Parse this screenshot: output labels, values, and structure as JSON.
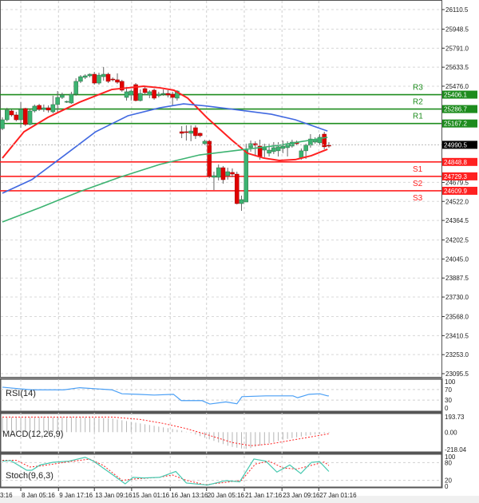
{
  "chart_data": {
    "type": "candlestick",
    "price_axis": {
      "ticks": [
        "26110.5",
        "25948.5",
        "25791.0",
        "25633.5",
        "25476.0",
        "24679.5",
        "24522.0",
        "24364.5",
        "24202.5",
        "24045.0",
        "23887.5",
        "23730.0",
        "23568.0",
        "23410.5",
        "23253.0",
        "23095.5"
      ],
      "range": [
        23095.5,
        26110.5
      ],
      "grid": true
    },
    "current_price": {
      "value": 24990.5,
      "label": "24990.5",
      "color": "#000000"
    },
    "levels": [
      {
        "name": "R3",
        "value": 25406.1,
        "label": "25406.1",
        "color": "#1e8c1e"
      },
      {
        "name": "R2",
        "value": 25286.7,
        "label": "25286.7",
        "color": "#1e8c1e"
      },
      {
        "name": "R1",
        "value": 25167.2,
        "label": "25167.2",
        "color": "#1e8c1e"
      },
      {
        "name": "S1",
        "value": 24848.8,
        "label": "24848.8",
        "color": "#ff2020"
      },
      {
        "name": "S2",
        "value": 24729.3,
        "label": "24729.3",
        "color": "#ff2020"
      },
      {
        "name": "S3",
        "value": 24609.9,
        "label": "24609.9",
        "color": "#ff2020"
      }
    ],
    "colors": {
      "up": "#3cb371",
      "down": "#e00000",
      "ma_fast": "#ff2020",
      "ma_mid": "#4169e1",
      "ma_slow": "#3cb371"
    },
    "candles_ohlc": [
      [
        25125,
        25218,
        25112,
        25198
      ],
      [
        25198,
        25297,
        25185,
        25278
      ],
      [
        25271,
        25284,
        25225,
        25238
      ],
      [
        25238,
        25264,
        25185,
        25198
      ],
      [
        25198,
        25344,
        25132,
        25284
      ],
      [
        25291,
        25297,
        25145,
        25159
      ],
      [
        25159,
        25284,
        25152,
        25271
      ],
      [
        25271,
        25324,
        25258,
        25311
      ],
      [
        25317,
        25330,
        25271,
        25284
      ],
      [
        25284,
        25324,
        25264,
        25297
      ],
      [
        25297,
        25317,
        25258,
        25278
      ],
      [
        25264,
        25397,
        25251,
        25324
      ],
      [
        25324,
        25436,
        25258,
        25383
      ],
      [
        25383,
        25423,
        25370,
        25403
      ],
      [
        25344,
        25357,
        25337,
        25350
      ],
      [
        25337,
        25430,
        25330,
        25410
      ],
      [
        25410,
        25542,
        25397,
        25516
      ],
      [
        25516,
        25568,
        25502,
        25555
      ],
      [
        25549,
        25575,
        25535,
        25562
      ],
      [
        25562,
        25582,
        25549,
        25575
      ],
      [
        25575,
        25595,
        25489,
        25502
      ],
      [
        25502,
        25588,
        25489,
        25568
      ],
      [
        25555,
        25635,
        25522,
        25575
      ],
      [
        25575,
        25588,
        25502,
        25516
      ],
      [
        25535,
        25549,
        25516,
        25529
      ],
      [
        25529,
        25582,
        25496,
        25509
      ],
      [
        25516,
        25529,
        25430,
        25443
      ],
      [
        25383,
        25469,
        25357,
        25430
      ],
      [
        25403,
        25449,
        25357,
        25436
      ],
      [
        25489,
        25502,
        25350,
        25357
      ],
      [
        25357,
        25449,
        25350,
        25416
      ],
      [
        25456,
        25469,
        25403,
        25423
      ],
      [
        25403,
        25443,
        25377,
        25430
      ],
      [
        25443,
        25456,
        25364,
        25377
      ],
      [
        25397,
        25430,
        25383,
        25410
      ],
      [
        25410,
        25449,
        25397,
        25416
      ],
      [
        25416,
        25443,
        25383,
        25403
      ],
      [
        25410,
        25430,
        25317,
        25383
      ],
      [
        25377,
        25443,
        25357,
        25436
      ],
      [
        25099,
        25145,
        25046,
        25086
      ],
      [
        25099,
        25152,
        25026,
        25092
      ],
      [
        25086,
        25152,
        25020,
        25105
      ],
      [
        25132,
        25152,
        25039,
        25066
      ],
      [
        25086,
        25092,
        25053,
        25066
      ],
      [
        25000,
        25033,
        24987,
        25020
      ],
      [
        25020,
        25033,
        24715,
        24729
      ],
      [
        24722,
        24768,
        24616,
        24735
      ],
      [
        24722,
        24828,
        24695,
        24801
      ],
      [
        24801,
        24815,
        24669,
        24702
      ],
      [
        24735,
        24801,
        24702,
        24768
      ],
      [
        24762,
        24795,
        24722,
        24748
      ],
      [
        24748,
        24768,
        24497,
        24504
      ],
      [
        24504,
        24570,
        24444,
        24537
      ],
      [
        24517,
        25000,
        24517,
        24947
      ],
      [
        24967,
        25026,
        24934,
        25000
      ],
      [
        25000,
        25020,
        24901,
        24987
      ],
      [
        24980,
        25033,
        24868,
        24894
      ],
      [
        24947,
        25000,
        24888,
        24967
      ],
      [
        24921,
        25000,
        24894,
        24947
      ],
      [
        24934,
        25013,
        24914,
        24967
      ],
      [
        24941,
        25013,
        24894,
        24974
      ],
      [
        24960,
        25026,
        24921,
        24980
      ],
      [
        24967,
        25020,
        24894,
        25000
      ],
      [
        24980,
        25033,
        24967,
        25013
      ],
      [
        25013,
        25026,
        24987,
        25000
      ],
      [
        24881,
        24960,
        24868,
        24941
      ],
      [
        24941,
        25000,
        24874,
        24987
      ],
      [
        24987,
        25079,
        24967,
        25039
      ],
      [
        25013,
        25053,
        25000,
        25033
      ],
      [
        25007,
        25079,
        24987,
        25053
      ],
      [
        25079,
        25099,
        24954,
        24974
      ],
      [
        24987,
        25013,
        24967,
        24980
      ]
    ],
    "moving_averages": [
      {
        "key": "ma_fast",
        "points": [
          [
            0,
            24881
          ],
          [
            4.7,
            25099
          ],
          [
            9.9,
            25218
          ],
          [
            16.8,
            25344
          ],
          [
            23.8,
            25449
          ],
          [
            30.7,
            25476
          ],
          [
            34.2,
            25463
          ],
          [
            37.3,
            25443
          ],
          [
            40.3,
            25377
          ],
          [
            44.6,
            25211
          ],
          [
            49.8,
            25033
          ],
          [
            53.3,
            24921
          ],
          [
            56.8,
            24881
          ],
          [
            60.2,
            24861
          ],
          [
            63.7,
            24868
          ],
          [
            67.2,
            24901
          ],
          [
            70.7,
            24954
          ]
        ]
      },
      {
        "key": "ma_mid",
        "points": [
          [
            0,
            24590
          ],
          [
            6.4,
            24702
          ],
          [
            13.4,
            24901
          ],
          [
            20.3,
            25099
          ],
          [
            27.3,
            25231
          ],
          [
            34.2,
            25297
          ],
          [
            39.4,
            25330
          ],
          [
            44.6,
            25311
          ],
          [
            51.6,
            25278
          ],
          [
            58.5,
            25244
          ],
          [
            63.7,
            25198
          ],
          [
            70.7,
            25105
          ]
        ]
      },
      {
        "key": "ma_slow",
        "points": [
          [
            0,
            24352
          ],
          [
            8.2,
            24471
          ],
          [
            16.8,
            24603
          ],
          [
            25.5,
            24722
          ],
          [
            34.2,
            24828
          ],
          [
            42.9,
            24907
          ],
          [
            51.6,
            24947
          ],
          [
            60.2,
            24987
          ],
          [
            70.7,
            25053
          ]
        ]
      }
    ],
    "time_axis": [
      {
        "bar": -0.3,
        "label": "3:16"
      },
      {
        "bar": 4,
        "label": "8 Jan 05:16"
      },
      {
        "bar": 12.2,
        "label": "9 Jan 17:16"
      },
      {
        "bar": 20,
        "label": "13 Jan 09:16"
      },
      {
        "bar": 28.1,
        "label": "15 Jan 01:16"
      },
      {
        "bar": 36.5,
        "label": "16 Jan 13:16"
      },
      {
        "bar": 44.4,
        "label": "20 Jan 05:16"
      },
      {
        "bar": 52.6,
        "label": "21 Jan 17:16"
      },
      {
        "bar": 60.8,
        "label": "23 Jan 09:16"
      },
      {
        "bar": 68.8,
        "label": "27 Jan 01:16"
      }
    ],
    "indicators": {
      "rsi": {
        "title": "RSI(14)",
        "ticks": [
          "100",
          "70",
          "30",
          "0"
        ],
        "range": [
          0,
          100
        ],
        "color": "#4a9ff5",
        "points": [
          [
            0,
            79
          ],
          [
            3,
            74
          ],
          [
            6.4,
            69
          ],
          [
            13.4,
            69
          ],
          [
            16.8,
            77
          ],
          [
            23.8,
            69
          ],
          [
            26,
            54
          ],
          [
            29.5,
            52
          ],
          [
            33,
            49
          ],
          [
            37.2,
            52
          ],
          [
            38.9,
            28
          ],
          [
            43.4,
            28
          ],
          [
            45.1,
            15
          ],
          [
            48.6,
            23
          ],
          [
            51,
            16
          ],
          [
            52.1,
            43
          ],
          [
            57.3,
            46
          ],
          [
            63.2,
            46
          ],
          [
            64.2,
            39
          ],
          [
            66.7,
            52
          ],
          [
            69,
            54
          ],
          [
            70.7,
            46
          ],
          [
            71,
            46
          ]
        ]
      },
      "macd": {
        "title": "MACD(12,26,9)",
        "ticks": [
          "193.73",
          "0.00",
          "-218.04"
        ],
        "range": [
          -218.04,
          193.73
        ],
        "histogram_color": "#b4b4b4",
        "signal_color": "#ff2020",
        "histogram": [
          185,
          188,
          190,
          190,
          192,
          190,
          188,
          190,
          192,
          193,
          190,
          188,
          190,
          191,
          192,
          193,
          190,
          188,
          186,
          184,
          182,
          180,
          178,
          175,
          170,
          160,
          150,
          140,
          130,
          120,
          110,
          100,
          90,
          80,
          70,
          60,
          50,
          40,
          30,
          20,
          5,
          -10,
          -30,
          -50,
          -70,
          -90,
          -110,
          -130,
          -150,
          -170,
          -185,
          -195,
          -205,
          -210,
          -200,
          -185,
          -170,
          -155,
          -140,
          -125,
          -110,
          -95,
          -85,
          -75,
          -65,
          -55,
          -45,
          -38,
          -30,
          -22,
          -15,
          -10
        ],
        "signal": [
          [
            0,
            190
          ],
          [
            24,
            190
          ],
          [
            30,
            160
          ],
          [
            35,
            110
          ],
          [
            40,
            45
          ],
          [
            45,
            -40
          ],
          [
            50,
            -130
          ],
          [
            54,
            -170
          ],
          [
            58,
            -150
          ],
          [
            62,
            -110
          ],
          [
            66,
            -70
          ],
          [
            70,
            -30
          ],
          [
            71,
            -20
          ]
        ]
      },
      "stoch": {
        "title": "Stoch(9,6,3)",
        "ticks": [
          "100",
          "80",
          "20",
          "0"
        ],
        "range": [
          0,
          100
        ],
        "main_color": "#48c9b0",
        "signal_color": "#ff2020",
        "main": [
          [
            0,
            85
          ],
          [
            1.8,
            87
          ],
          [
            5.3,
            54
          ],
          [
            6.4,
            54
          ],
          [
            8.2,
            72
          ],
          [
            11,
            81
          ],
          [
            14.5,
            85
          ],
          [
            18,
            98
          ],
          [
            19.8,
            85
          ],
          [
            23.8,
            41
          ],
          [
            26.7,
            8
          ],
          [
            28.4,
            30
          ],
          [
            30.7,
            28
          ],
          [
            34.2,
            30
          ],
          [
            37.7,
            50
          ],
          [
            40,
            11
          ],
          [
            44.6,
            4
          ],
          [
            48.6,
            19
          ],
          [
            51.6,
            15
          ],
          [
            54.7,
            92
          ],
          [
            57.3,
            85
          ],
          [
            59.7,
            48
          ],
          [
            62.5,
            72
          ],
          [
            64.9,
            43
          ],
          [
            67.2,
            81
          ],
          [
            69,
            83
          ],
          [
            71,
            50
          ]
        ],
        "signal": [
          [
            0,
            88
          ],
          [
            3,
            88
          ],
          [
            6,
            65
          ],
          [
            9,
            70
          ],
          [
            14,
            82
          ],
          [
            19,
            92
          ],
          [
            22,
            70
          ],
          [
            26,
            20
          ],
          [
            29,
            25
          ],
          [
            34,
            30
          ],
          [
            37,
            38
          ],
          [
            40,
            20
          ],
          [
            44,
            5
          ],
          [
            48,
            12
          ],
          [
            52,
            20
          ],
          [
            55,
            75
          ],
          [
            58,
            85
          ],
          [
            61,
            62
          ],
          [
            64,
            58
          ],
          [
            67,
            70
          ],
          [
            70,
            82
          ],
          [
            71,
            70
          ]
        ]
      }
    }
  }
}
